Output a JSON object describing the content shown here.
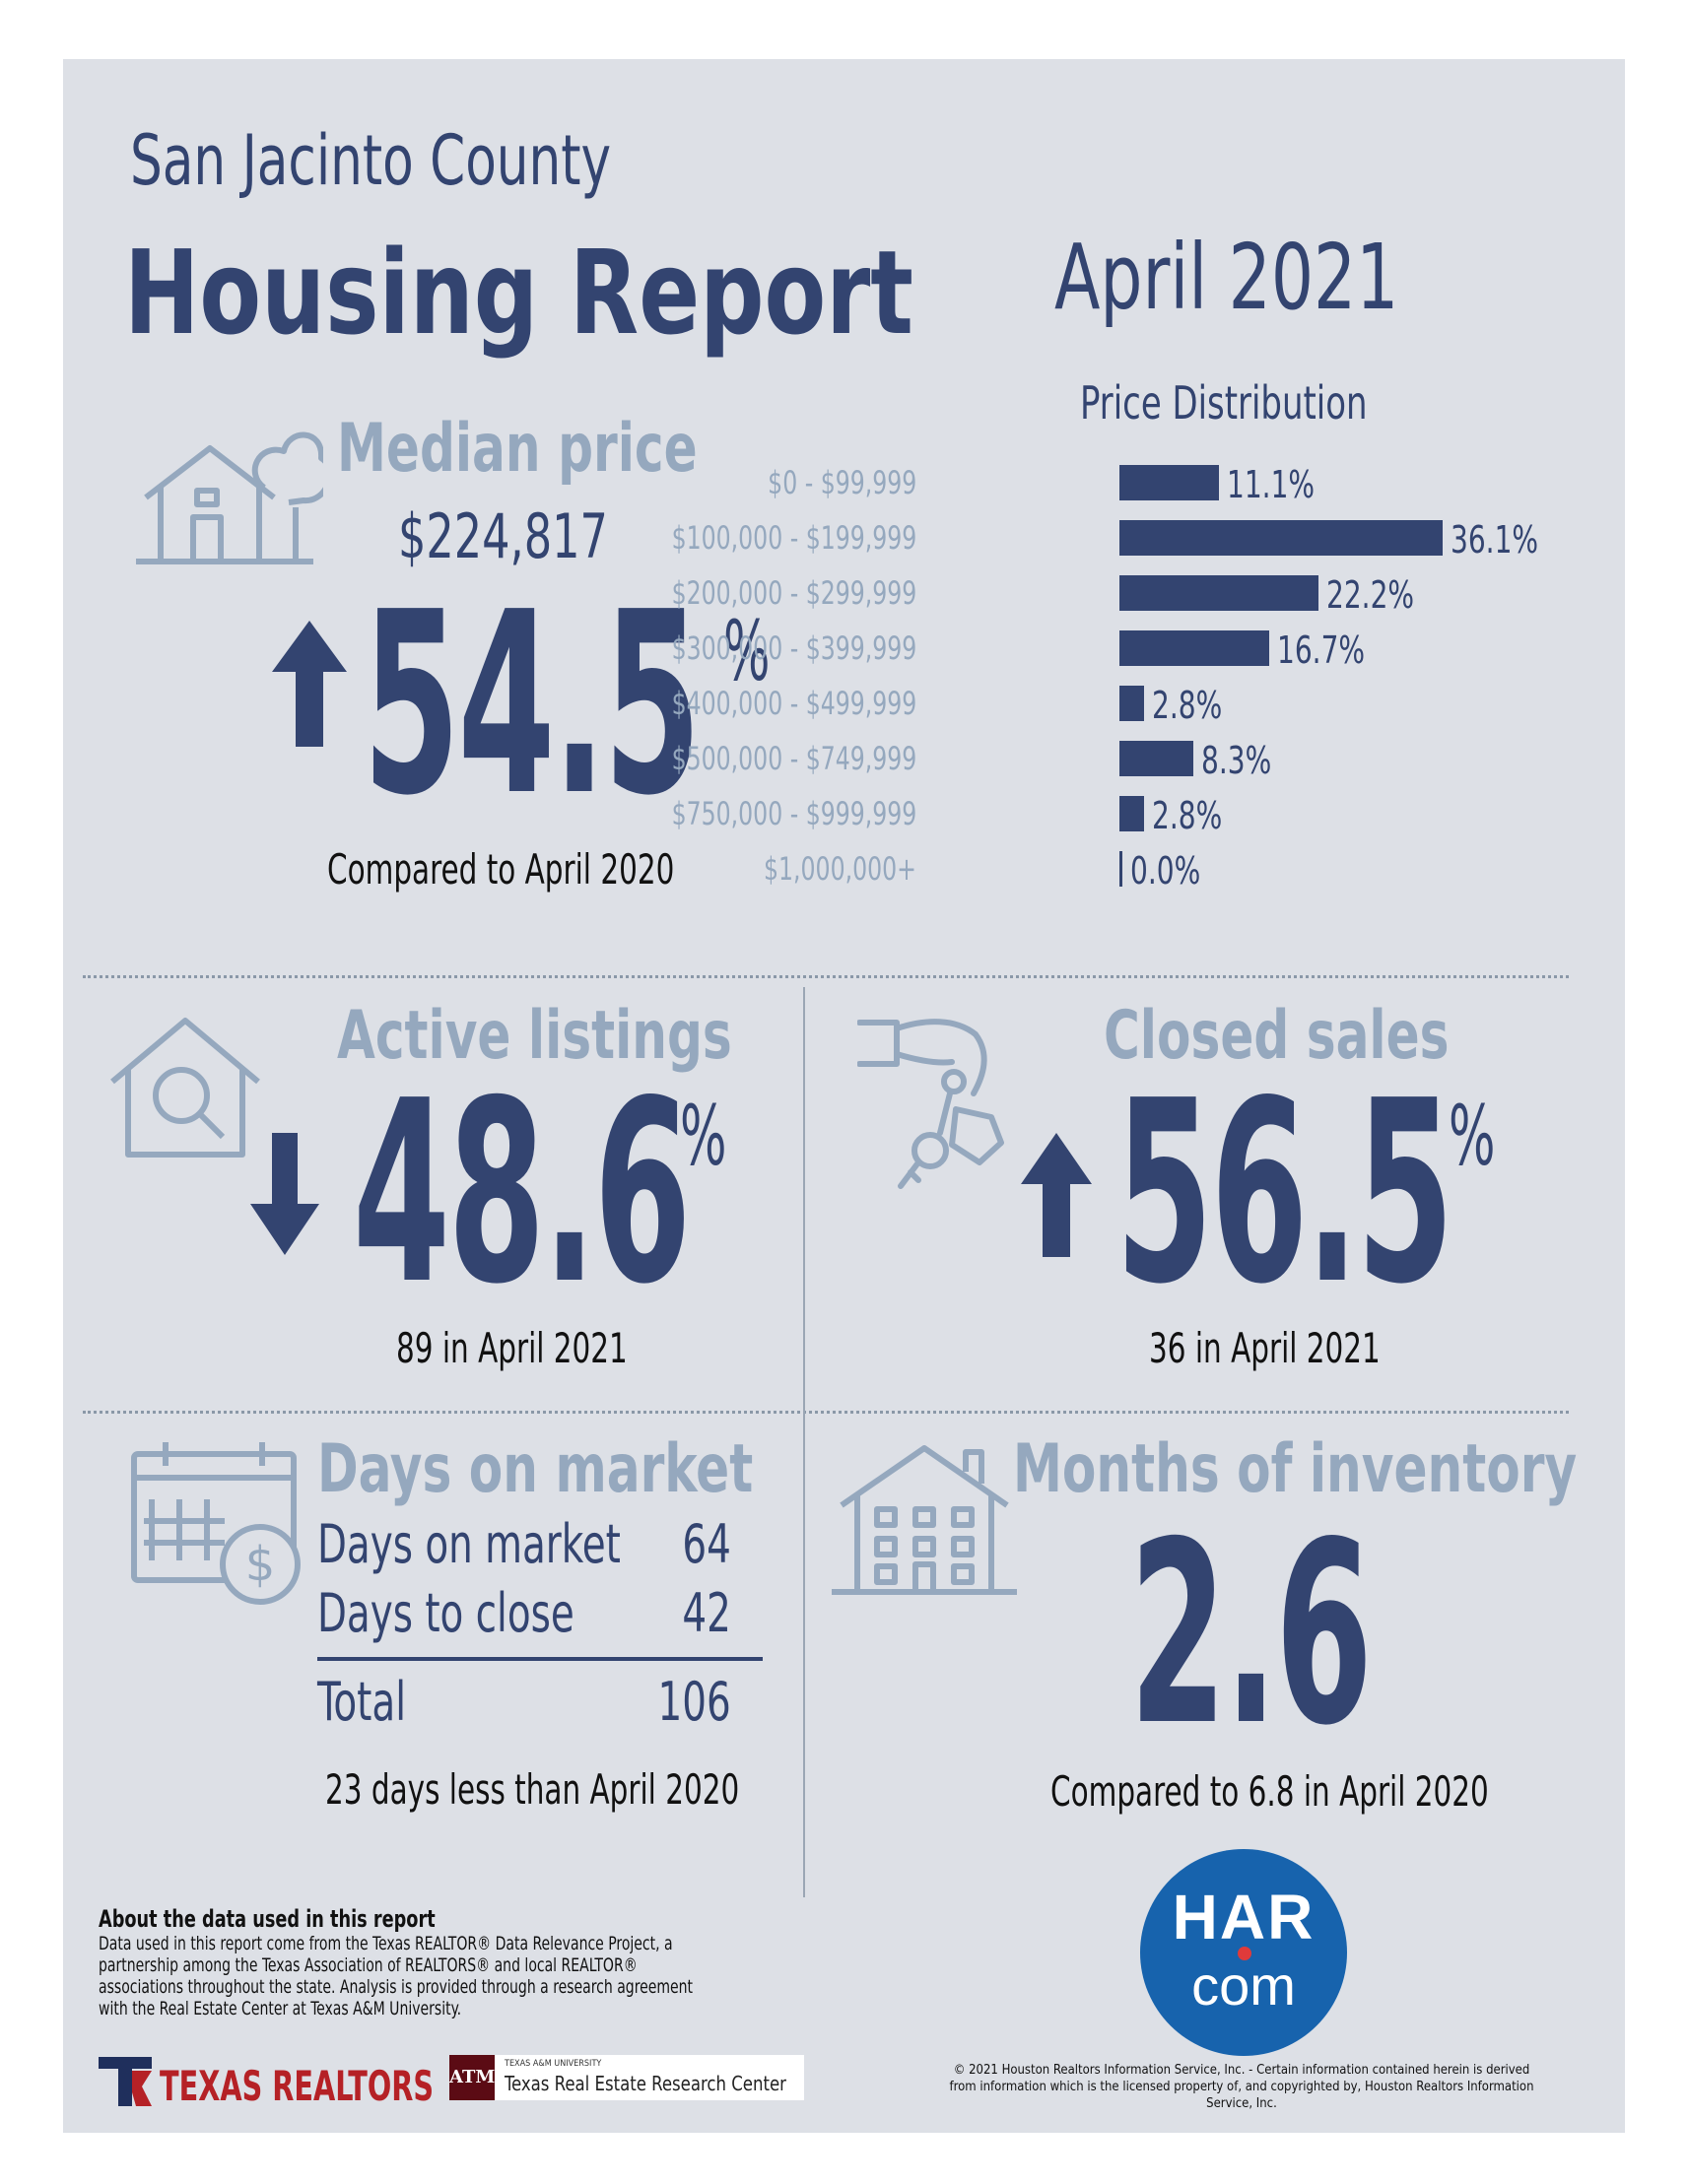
{
  "header": {
    "county": "San Jacinto County",
    "title": "Housing Report",
    "date": "April 2021"
  },
  "median_price": {
    "heading": "Median price",
    "value": "$224,817",
    "change": "54.5",
    "percent_sign": "%",
    "direction": "up",
    "comparison": "Compared to April 2020"
  },
  "price_distribution": {
    "title": "Price Distribution",
    "rows": [
      {
        "label": "$0 - $99,999",
        "value": "11.1%"
      },
      {
        "label": "$100,000 - $199,999",
        "value": "36.1%"
      },
      {
        "label": "$200,000 - $299,999",
        "value": "22.2%"
      },
      {
        "label": "$300,000 - $399,999",
        "value": "16.7%"
      },
      {
        "label": "$400,000 - $499,999",
        "value": "2.8%"
      },
      {
        "label": "$500,000 - $749,999",
        "value": "8.3%"
      },
      {
        "label": "$750,000 - $999,999",
        "value": "2.8%"
      },
      {
        "label": "$1,000,000+",
        "value": "0.0%"
      }
    ]
  },
  "chart_data": {
    "type": "bar",
    "orientation": "horizontal",
    "title": "Price Distribution",
    "categories": [
      "$0 - $99,999",
      "$100,000 - $199,999",
      "$200,000 - $299,999",
      "$300,000 - $399,999",
      "$400,000 - $499,999",
      "$500,000 - $749,999",
      "$750,000 - $999,999",
      "$1,000,000+"
    ],
    "values": [
      11.1,
      36.1,
      22.2,
      16.7,
      2.8,
      8.3,
      2.8,
      0.0
    ],
    "unit": "%"
  },
  "active_listings": {
    "heading": "Active listings",
    "change": "48.6",
    "percent_sign": "%",
    "direction": "down",
    "detail": "89 in April 2021"
  },
  "closed_sales": {
    "heading": "Closed sales",
    "change": "56.5",
    "percent_sign": "%",
    "direction": "up",
    "detail": "36 in April 2021"
  },
  "days_on_market": {
    "heading": "Days on market",
    "rows": [
      {
        "label": "Days on market",
        "value": "64"
      },
      {
        "label": "Days to close",
        "value": "42"
      }
    ],
    "total_label": "Total",
    "total_value": "106",
    "comparison": "23 days less than April 2020"
  },
  "months_inventory": {
    "heading": "Months of inventory",
    "value": "2.6",
    "comparison": "Compared to 6.8 in April 2020"
  },
  "about": {
    "title": "About the data used in this report",
    "body": "Data used in this report come from the Texas REALTOR® Data Relevance Project, a\npartnership among the Texas Association of REALTORS® and local REALTOR®\nassociations throughout the state. Analysis is provided through a research agreement\nwith the Real Estate Center at Texas A&M University."
  },
  "logos": {
    "texas_realtors": "TEXAS REALTORS",
    "tamu_small": "TEXAS A&M UNIVERSITY",
    "tamu_big": "Texas Real Estate Research Center",
    "har_top": "HAR",
    "har_bottom": "com"
  },
  "copyright": "© 2021 Houston Realtors Information Service, Inc. - Certain information contained herein is derived\nfrom information which is the licensed property of, and copyrighted by, Houston Realtors Information Service, Inc.",
  "colors": {
    "navy": "#334470",
    "muted_blue": "#95a8be",
    "background": "#dde0e6",
    "har_blue": "#1763ad",
    "texas_red": "#b52126"
  }
}
